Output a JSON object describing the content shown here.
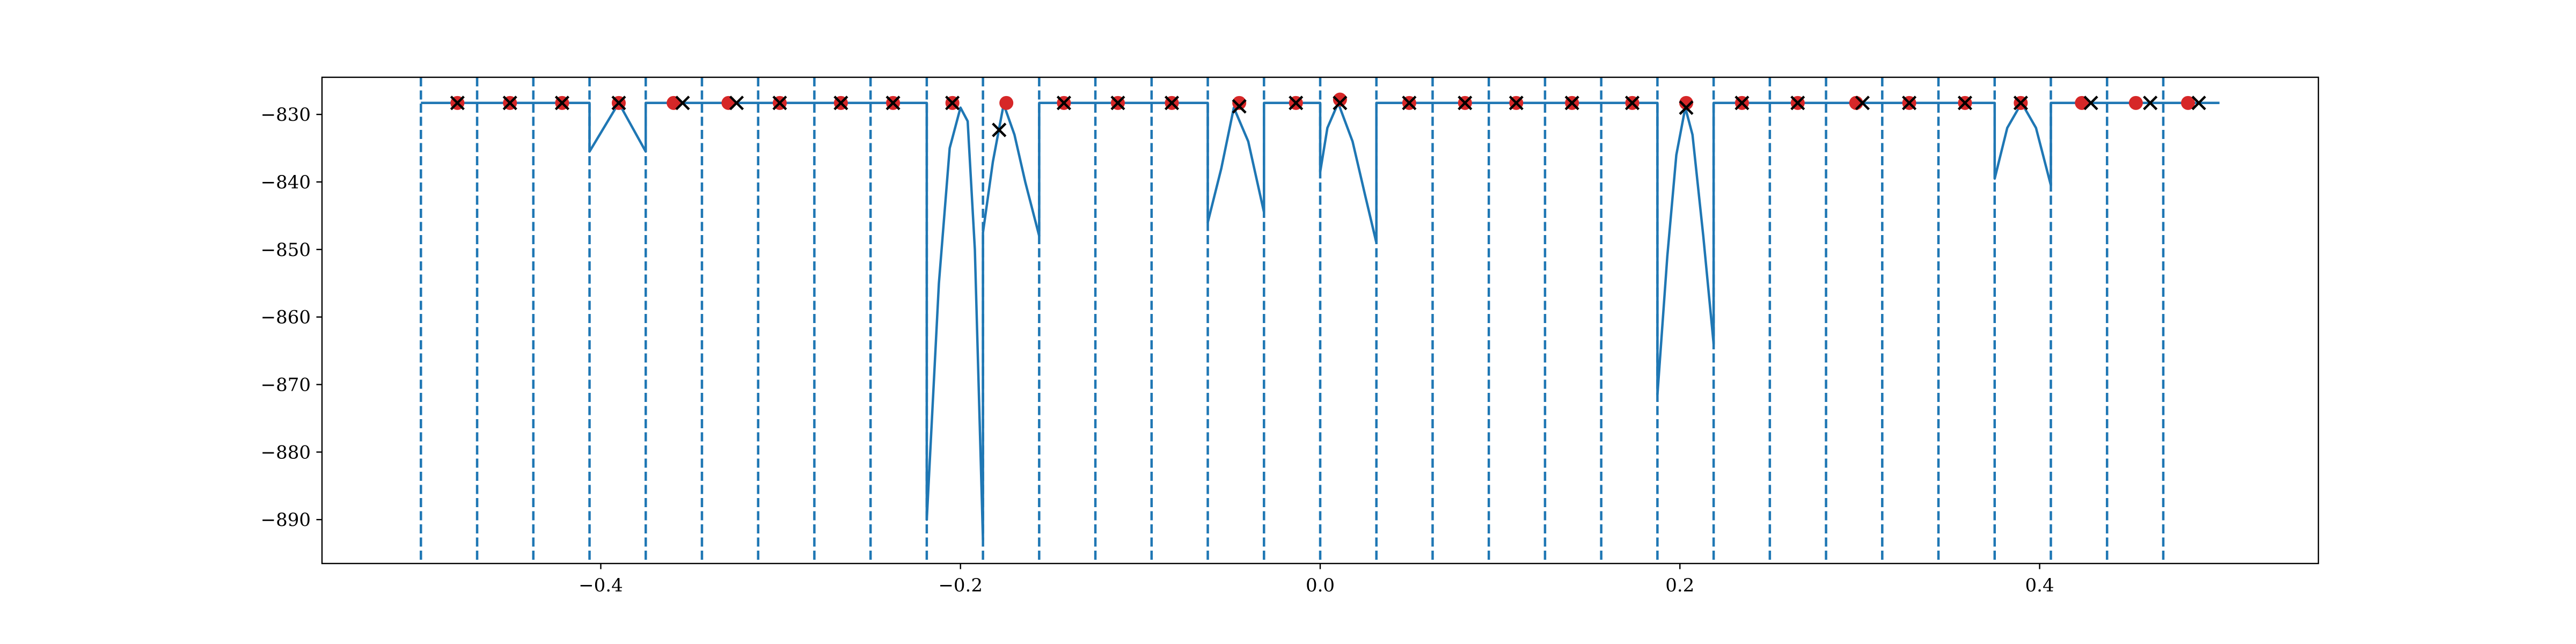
{
  "chart_data": {
    "type": "line",
    "title": "",
    "xlabel": "",
    "ylabel": "",
    "xlim": [
      -0.555,
      0.555
    ],
    "ylim": [
      -896.5,
      -824.5
    ],
    "grid": false,
    "legend": "none",
    "xticks": [
      -0.4,
      -0.2,
      0.0,
      0.2,
      0.4
    ],
    "xtick_labels": [
      "−0.4",
      "−0.2",
      "0.0",
      "0.2",
      "0.4"
    ],
    "yticks": [
      -830,
      -840,
      -850,
      -860,
      -870,
      -880,
      -890
    ],
    "ytick_labels": [
      "−830",
      "−840",
      "−850",
      "−860",
      "−870",
      "−880",
      "−890"
    ],
    "colors": {
      "line": "#1f77b4",
      "boundaries": "#1f77b4",
      "red_points": "#d62728",
      "x_markers": "#000000"
    },
    "interval_boundaries": [
      -0.5,
      -0.46875,
      -0.4375,
      -0.40625,
      -0.375,
      -0.34375,
      -0.3125,
      -0.28125,
      -0.25,
      -0.21875,
      -0.1875,
      -0.15625,
      -0.125,
      -0.09375,
      -0.0625,
      -0.03125,
      0.0,
      0.03125,
      0.0625,
      0.09375,
      0.125,
      0.15625,
      0.1875,
      0.21875,
      0.25,
      0.28125,
      0.3125,
      0.34375,
      0.375,
      0.40625,
      0.4375,
      0.46875
    ],
    "series": [
      {
        "role": "curve",
        "style": "solid",
        "points": [
          [
            -0.5,
            -828.3
          ],
          [
            -0.40625,
            -828.3
          ],
          [
            -0.40625,
            -835.5
          ],
          [
            -0.39,
            -828.3
          ],
          [
            -0.375,
            -835.5
          ],
          [
            -0.375,
            -828.3
          ],
          [
            -0.21875,
            -828.3
          ],
          [
            -0.21875,
            -890
          ],
          [
            -0.212,
            -855
          ],
          [
            -0.206,
            -835
          ],
          [
            -0.2,
            -829
          ],
          [
            -0.196,
            -831
          ],
          [
            -0.192,
            -850
          ],
          [
            -0.1875,
            -893
          ],
          [
            -0.1875,
            -847.5
          ],
          [
            -0.182,
            -837
          ],
          [
            -0.176,
            -828.5
          ],
          [
            -0.17,
            -833
          ],
          [
            -0.164,
            -840
          ],
          [
            -0.15625,
            -848
          ],
          [
            -0.15625,
            -828.3
          ],
          [
            -0.0625,
            -828.3
          ],
          [
            -0.0625,
            -846
          ],
          [
            -0.055,
            -838
          ],
          [
            -0.048,
            -829
          ],
          [
            -0.04,
            -834
          ],
          [
            -0.03125,
            -844.5
          ],
          [
            -0.03125,
            -828.3
          ],
          [
            0.0,
            -828.3
          ],
          [
            0.0,
            -838.5
          ],
          [
            0.004,
            -832
          ],
          [
            0.01,
            -828.3
          ],
          [
            0.018,
            -834
          ],
          [
            0.025,
            -842
          ],
          [
            0.03125,
            -849
          ],
          [
            0.03125,
            -828.3
          ],
          [
            0.1875,
            -828.3
          ],
          [
            0.1875,
            -871.5
          ],
          [
            0.193,
            -851
          ],
          [
            0.198,
            -836
          ],
          [
            0.203,
            -829
          ],
          [
            0.207,
            -833
          ],
          [
            0.213,
            -848
          ],
          [
            0.21875,
            -864
          ],
          [
            0.21875,
            -828.3
          ],
          [
            0.375,
            -828.3
          ],
          [
            0.375,
            -839.5
          ],
          [
            0.382,
            -832
          ],
          [
            0.39,
            -828.3
          ],
          [
            0.398,
            -832
          ],
          [
            0.40625,
            -840.5
          ],
          [
            0.40625,
            -828.3
          ],
          [
            0.5,
            -828.3
          ]
        ]
      }
    ],
    "red_points": [
      [
        -0.4797,
        -828.3
      ],
      [
        -0.4505,
        -828.3
      ],
      [
        -0.4215,
        -828.3
      ],
      [
        -0.39,
        -828.3
      ],
      [
        -0.3595,
        -828.3
      ],
      [
        -0.329,
        -828.3
      ],
      [
        -0.3005,
        -828.3
      ],
      [
        -0.2665,
        -828.3
      ],
      [
        -0.2375,
        -828.3
      ],
      [
        -0.2045,
        -828.3
      ],
      [
        -0.1745,
        -828.3
      ],
      [
        -0.1425,
        -828.3
      ],
      [
        -0.1125,
        -828.3
      ],
      [
        -0.0825,
        -828.3
      ],
      [
        -0.045,
        -828.3
      ],
      [
        -0.0135,
        -828.3
      ],
      [
        0.011,
        -827.8
      ],
      [
        0.0495,
        -828.3
      ],
      [
        0.0805,
        -828.3
      ],
      [
        0.109,
        -828.3
      ],
      [
        0.14,
        -828.3
      ],
      [
        0.1735,
        -828.3
      ],
      [
        0.2035,
        -828.3
      ],
      [
        0.2345,
        -828.3
      ],
      [
        0.2655,
        -828.3
      ],
      [
        0.298,
        -828.3
      ],
      [
        0.3275,
        -828.3
      ],
      [
        0.3585,
        -828.3
      ],
      [
        0.3895,
        -828.3
      ],
      [
        0.4235,
        -828.3
      ],
      [
        0.4535,
        -828.3
      ],
      [
        0.4825,
        -828.3
      ]
    ],
    "x_markers": [
      [
        -0.4797,
        -828.3
      ],
      [
        -0.4505,
        -828.3
      ],
      [
        -0.4215,
        -828.3
      ],
      [
        -0.39,
        -828.3
      ],
      [
        -0.3545,
        -828.3
      ],
      [
        -0.3245,
        -828.3
      ],
      [
        -0.3005,
        -828.3
      ],
      [
        -0.2665,
        -828.3
      ],
      [
        -0.2375,
        -828.3
      ],
      [
        -0.2045,
        -828.3
      ],
      [
        -0.1785,
        -832.3
      ],
      [
        -0.1425,
        -828.3
      ],
      [
        -0.1125,
        -828.3
      ],
      [
        -0.0825,
        -828.3
      ],
      [
        -0.045,
        -828.8
      ],
      [
        -0.0135,
        -828.3
      ],
      [
        0.011,
        -828.3
      ],
      [
        0.0495,
        -828.3
      ],
      [
        0.0805,
        -828.3
      ],
      [
        0.109,
        -828.3
      ],
      [
        0.14,
        -828.3
      ],
      [
        0.1735,
        -828.3
      ],
      [
        0.2035,
        -829.0
      ],
      [
        0.2345,
        -828.3
      ],
      [
        0.2655,
        -828.3
      ],
      [
        0.3015,
        -828.3
      ],
      [
        0.3275,
        -828.3
      ],
      [
        0.3585,
        -828.3
      ],
      [
        0.3895,
        -828.3
      ],
      [
        0.4285,
        -828.3
      ],
      [
        0.4615,
        -828.3
      ],
      [
        0.4885,
        -828.3
      ]
    ]
  }
}
